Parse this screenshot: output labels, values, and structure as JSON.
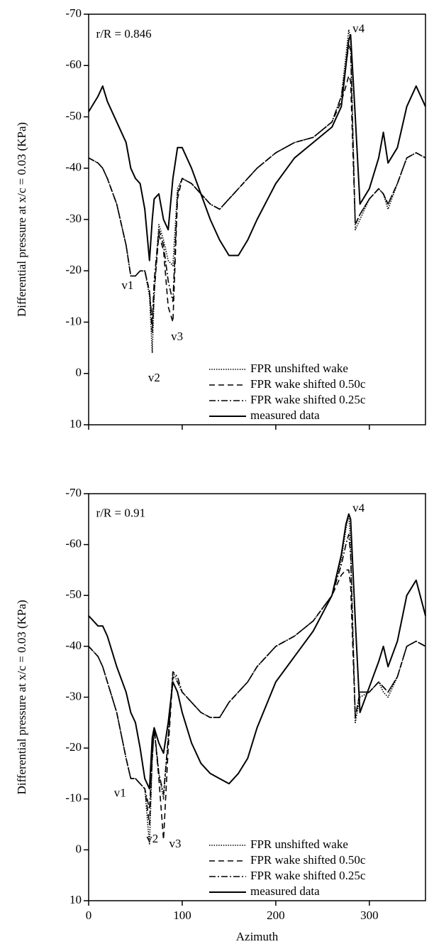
{
  "chart_data": [
    {
      "type": "line",
      "annotations": [
        "r/R = 0.846",
        "v1",
        "v2",
        "v3",
        "v4"
      ],
      "ylabel": "Differential pressure at x/c = 0.03 (KPa)",
      "xlim": [
        0,
        360
      ],
      "xticks": [
        0,
        100,
        200,
        300
      ],
      "xtick_labels": false,
      "ylim": [
        10,
        -70
      ],
      "yticks": [
        -70,
        -60,
        -50,
        -40,
        -30,
        -20,
        -10,
        0,
        10
      ],
      "legend": "lower right",
      "x": [
        0,
        10,
        15,
        20,
        30,
        40,
        45,
        50,
        55,
        60,
        65,
        68,
        70,
        75,
        80,
        85,
        90,
        95,
        100,
        110,
        120,
        130,
        140,
        150,
        160,
        170,
        180,
        200,
        220,
        240,
        260,
        270,
        275,
        278,
        280,
        285,
        290,
        300,
        310,
        315,
        320,
        330,
        340,
        350,
        360
      ],
      "series": [
        {
          "name": "FPR unshifted wake",
          "color": "#000000",
          "style": "dotted",
          "values": [
            -42,
            -41,
            -40,
            -38,
            -33,
            -25,
            -19,
            -19,
            -20,
            -20,
            -15,
            -4,
            -15,
            -29,
            -26,
            -22,
            -21,
            -36,
            -38,
            -37,
            -35,
            -33,
            -32,
            -34,
            -36,
            -38,
            -40,
            -43,
            -45,
            -46,
            -49,
            -54,
            -62,
            -67,
            -65,
            -28,
            -30,
            -34,
            -36,
            -35,
            -32,
            -37,
            -42,
            -43,
            -42
          ]
        },
        {
          "name": "FPR wake shifted 0.50c",
          "color": "#000000",
          "style": "dashed",
          "values": [
            -42,
            -41,
            -40,
            -38,
            -33,
            -25,
            -19,
            -19,
            -20,
            -20,
            -16,
            -8,
            -16,
            -27,
            -24,
            -13,
            -10,
            -34,
            -38,
            -37,
            -35,
            -33,
            -32,
            -34,
            -36,
            -38,
            -40,
            -43,
            -45,
            -46,
            -49,
            -53,
            -56,
            -58,
            -57,
            -29,
            -31,
            -34,
            -36,
            -35,
            -33,
            -37,
            -42,
            -43,
            -42
          ]
        },
        {
          "name": "FPR wake shifted 0.25c",
          "color": "#000000",
          "style": "dashdot",
          "values": [
            -42,
            -41,
            -40,
            -38,
            -33,
            -25,
            -19,
            -19,
            -20,
            -20,
            -16,
            -10,
            -18,
            -28,
            -25,
            -18,
            -14,
            -35,
            -38,
            -37,
            -35,
            -33,
            -32,
            -34,
            -36,
            -38,
            -40,
            -43,
            -45,
            -46,
            -49,
            -54,
            -60,
            -64,
            -63,
            -29,
            -31,
            -34,
            -36,
            -35,
            -33,
            -37,
            -42,
            -43,
            -42
          ]
        },
        {
          "name": "measured data",
          "color": "#000000",
          "style": "solid",
          "values": [
            -51,
            -54,
            -56,
            -53,
            -49,
            -45,
            -40,
            -38,
            -37,
            -32,
            -22,
            -30,
            -34,
            -35,
            -30,
            -28,
            -38,
            -44,
            -44,
            -40,
            -35,
            -30,
            -26,
            -23,
            -23,
            -26,
            -30,
            -37,
            -42,
            -45,
            -48,
            -52,
            -60,
            -65,
            -66,
            -50,
            -33,
            -36,
            -42,
            -47,
            -41,
            -44,
            -52,
            -56,
            -52
          ]
        }
      ]
    },
    {
      "type": "line",
      "annotations": [
        "r/R = 0.91",
        "v1",
        "v2",
        "v3",
        "v4"
      ],
      "ylabel": "Differential pressure at x/c = 0.03 (KPa)",
      "xlabel": "Azimuth",
      "xlim": [
        0,
        360
      ],
      "xticks": [
        0,
        100,
        200,
        300
      ],
      "xtick_labels": true,
      "ylim": [
        10,
        -70
      ],
      "yticks": [
        -70,
        -60,
        -50,
        -40,
        -30,
        -20,
        -10,
        0,
        10
      ],
      "legend": "lower right",
      "x": [
        0,
        10,
        15,
        20,
        30,
        40,
        45,
        50,
        55,
        60,
        65,
        68,
        70,
        75,
        80,
        85,
        90,
        95,
        100,
        110,
        120,
        130,
        140,
        150,
        160,
        170,
        180,
        200,
        220,
        240,
        260,
        270,
        275,
        278,
        280,
        285,
        290,
        300,
        310,
        315,
        320,
        330,
        340,
        350,
        360
      ],
      "series": [
        {
          "name": "FPR unshifted wake",
          "color": "#000000",
          "style": "dotted",
          "values": [
            -40,
            -38,
            -36,
            -33,
            -27,
            -18,
            -14,
            -14,
            -13,
            -12,
            -1,
            -18,
            -24,
            -15,
            -10,
            -22,
            -35,
            -33,
            -31,
            -29,
            -27,
            -26,
            -26,
            -29,
            -31,
            -33,
            -36,
            -40,
            -42,
            -45,
            -50,
            -57,
            -63,
            -66,
            -60,
            -25,
            -30,
            -31,
            -33,
            -31,
            -30,
            -34,
            -40,
            -41,
            -40
          ]
        },
        {
          "name": "FPR wake shifted 0.50c",
          "color": "#000000",
          "style": "dashed",
          "values": [
            -40,
            -38,
            -36,
            -33,
            -27,
            -18,
            -14,
            -14,
            -13,
            -12,
            -5,
            -18,
            -24,
            -14,
            -2,
            -20,
            -34,
            -33,
            -31,
            -29,
            -27,
            -26,
            -26,
            -29,
            -31,
            -33,
            -36,
            -40,
            -42,
            -45,
            -50,
            -54,
            -55,
            -55,
            -52,
            -26,
            -31,
            -31,
            -33,
            -32,
            -31,
            -34,
            -40,
            -41,
            -40
          ]
        },
        {
          "name": "FPR wake shifted 0.25c",
          "color": "#000000",
          "style": "dashdot",
          "values": [
            -40,
            -38,
            -36,
            -33,
            -27,
            -18,
            -14,
            -14,
            -13,
            -12,
            -8,
            -18,
            -24,
            -15,
            -11,
            -22,
            -35,
            -34,
            -31,
            -29,
            -27,
            -26,
            -26,
            -29,
            -31,
            -33,
            -36,
            -40,
            -42,
            -45,
            -50,
            -56,
            -60,
            -62,
            -58,
            -26,
            -31,
            -31,
            -33,
            -32,
            -31,
            -34,
            -40,
            -41,
            -40
          ]
        },
        {
          "name": "measured data",
          "color": "#000000",
          "style": "solid",
          "values": [
            -46,
            -44,
            -44,
            -42,
            -36,
            -31,
            -27,
            -25,
            -20,
            -14,
            -12,
            -22,
            -24,
            -21,
            -19,
            -25,
            -33,
            -31,
            -27,
            -21,
            -17,
            -15,
            -14,
            -13,
            -15,
            -18,
            -24,
            -33,
            -38,
            -43,
            -50,
            -58,
            -64,
            -66,
            -65,
            -45,
            -27,
            -32,
            -37,
            -40,
            -36,
            -41,
            -50,
            -53,
            -46
          ]
        }
      ]
    }
  ]
}
